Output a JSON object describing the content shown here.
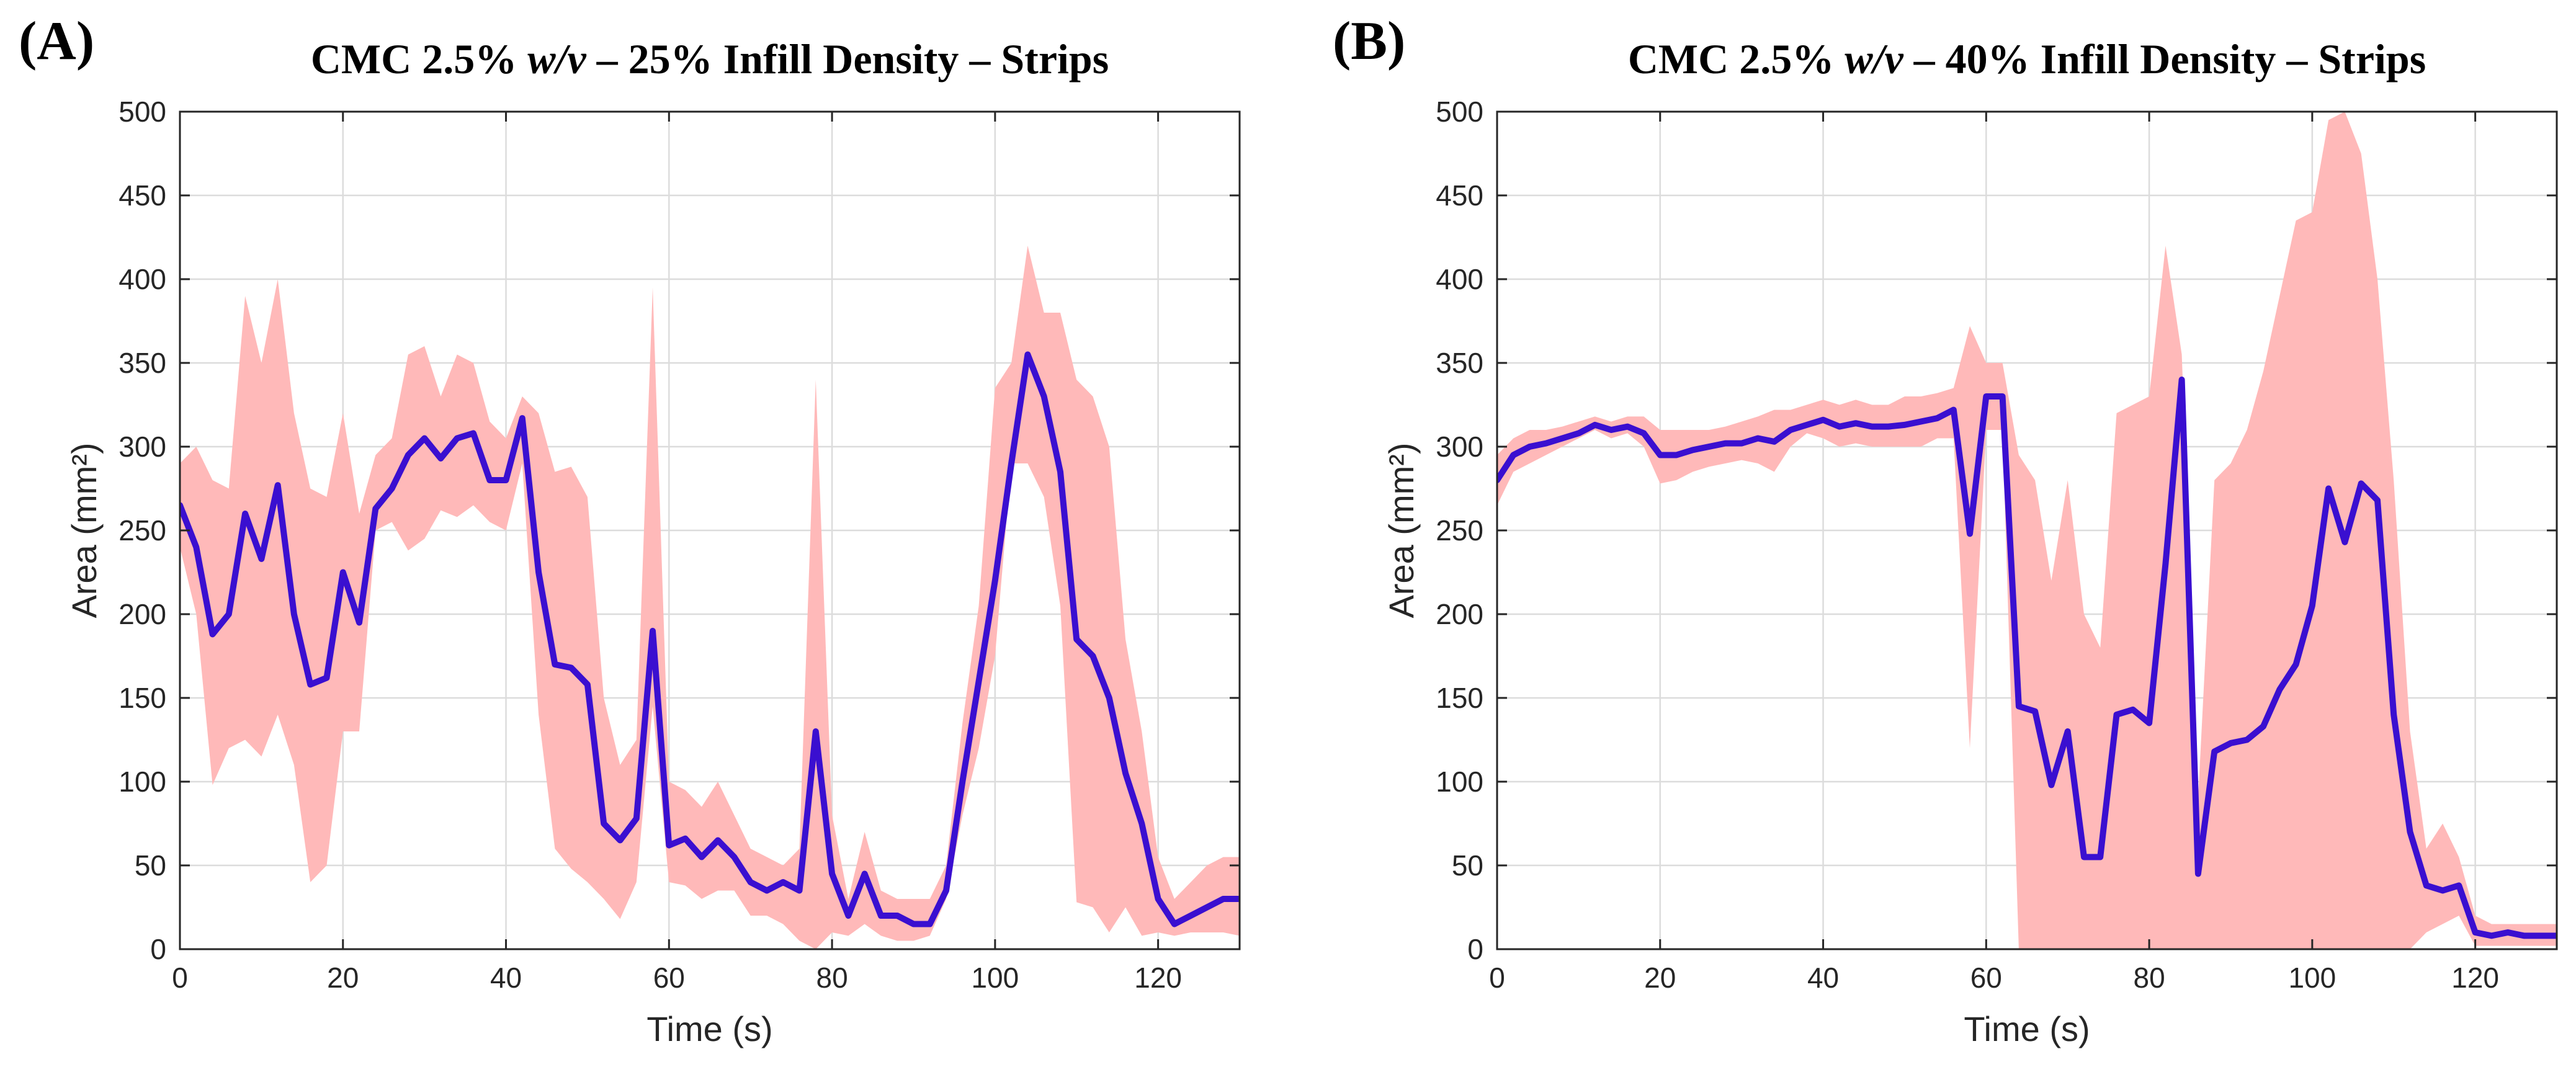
{
  "chart_data": [
    {
      "panel": "(A)",
      "type": "line",
      "title": "CMC 2.5% w/v – 25% Infill Density – Strips",
      "title_parts": [
        "CMC 2.5% ",
        "w/v",
        " – 25% Infill Density – Strips"
      ],
      "xlabel": "Time (s)",
      "ylabel": "Area (mm²)",
      "xlim": [
        0,
        130
      ],
      "ylim": [
        0,
        500
      ],
      "xticks": [
        0,
        20,
        40,
        60,
        80,
        100,
        120
      ],
      "yticks": [
        0,
        50,
        100,
        150,
        200,
        250,
        300,
        350,
        400,
        450,
        500
      ],
      "grid": true,
      "colors": {
        "mean": "#3a0fd0",
        "band": "#ffb9b9"
      },
      "series": [
        {
          "role": "mean",
          "x": [
            0,
            2,
            4,
            6,
            8,
            10,
            12,
            14,
            16,
            18,
            20,
            22,
            24,
            26,
            28,
            30,
            32,
            34,
            36,
            38,
            40,
            42,
            44,
            46,
            48,
            50,
            52,
            54,
            56,
            58,
            60,
            62,
            64,
            66,
            68,
            70,
            72,
            74,
            76,
            78,
            80,
            82,
            84,
            86,
            88,
            90,
            92,
            94,
            96,
            98,
            100,
            102,
            104,
            106,
            108,
            110,
            112,
            114,
            116,
            118,
            120,
            122,
            124,
            126,
            128,
            130
          ],
          "y": [
            265,
            240,
            188,
            200,
            260,
            233,
            277,
            200,
            158,
            162,
            225,
            195,
            263,
            275,
            295,
            305,
            293,
            305,
            308,
            280,
            280,
            317,
            225,
            170,
            168,
            158,
            75,
            65,
            78,
            190,
            62,
            66,
            55,
            65,
            55,
            40,
            35,
            40,
            35,
            130,
            45,
            20,
            45,
            20,
            20,
            15,
            15,
            35,
            100,
            160,
            220,
            290,
            355,
            330,
            285,
            185,
            175,
            150,
            105,
            75,
            30,
            15,
            20,
            25,
            30,
            30
          ],
          "lower": [
            240,
            200,
            98,
            120,
            125,
            115,
            140,
            110,
            40,
            50,
            130,
            130,
            250,
            255,
            238,
            245,
            262,
            258,
            265,
            255,
            250,
            290,
            140,
            60,
            48,
            40,
            30,
            18,
            40,
            145,
            40,
            38,
            30,
            35,
            35,
            20,
            20,
            15,
            5,
            0,
            10,
            8,
            15,
            8,
            5,
            5,
            8,
            30,
            80,
            120,
            175,
            290,
            290,
            270,
            205,
            28,
            25,
            10,
            25,
            8,
            10,
            8,
            10,
            10,
            10,
            8
          ],
          "upper": [
            290,
            300,
            280,
            275,
            390,
            350,
            400,
            320,
            275,
            270,
            320,
            260,
            295,
            305,
            355,
            360,
            330,
            355,
            350,
            315,
            305,
            330,
            320,
            285,
            288,
            270,
            150,
            110,
            125,
            395,
            100,
            95,
            85,
            100,
            80,
            60,
            55,
            50,
            60,
            340,
            80,
            30,
            70,
            35,
            30,
            30,
            30,
            50,
            135,
            205,
            335,
            350,
            420,
            380,
            380,
            340,
            330,
            300,
            185,
            130,
            55,
            30,
            40,
            50,
            55,
            55
          ]
        }
      ]
    },
    {
      "panel": "(B)",
      "type": "line",
      "title": "CMC 2.5% w/v – 40% Infill Density – Strips",
      "title_parts": [
        "CMC 2.5% ",
        "w/v",
        " – 40% Infill Density – Strips"
      ],
      "xlabel": "Time (s)",
      "ylabel": "Area (mm²)",
      "xlim": [
        0,
        130
      ],
      "ylim": [
        0,
        500
      ],
      "xticks": [
        0,
        20,
        40,
        60,
        80,
        100,
        120
      ],
      "yticks": [
        0,
        50,
        100,
        150,
        200,
        250,
        300,
        350,
        400,
        450,
        500
      ],
      "grid": true,
      "colors": {
        "mean": "#3a0fd0",
        "band": "#ffb9b9"
      },
      "series": [
        {
          "role": "mean",
          "x": [
            0,
            2,
            4,
            6,
            8,
            10,
            12,
            14,
            16,
            18,
            20,
            22,
            24,
            26,
            28,
            30,
            32,
            34,
            36,
            38,
            40,
            42,
            44,
            46,
            48,
            50,
            52,
            54,
            56,
            58,
            60,
            62,
            64,
            66,
            68,
            70,
            72,
            74,
            76,
            78,
            80,
            82,
            84,
            86,
            88,
            90,
            92,
            94,
            96,
            98,
            100,
            102,
            104,
            106,
            108,
            110,
            112,
            114,
            116,
            118,
            120,
            122,
            124,
            126,
            128,
            130
          ],
          "y": [
            280,
            295,
            300,
            302,
            305,
            308,
            313,
            310,
            312,
            308,
            295,
            295,
            298,
            300,
            302,
            302,
            305,
            303,
            310,
            313,
            316,
            312,
            314,
            312,
            312,
            313,
            315,
            317,
            322,
            248,
            330,
            330,
            145,
            142,
            98,
            130,
            55,
            55,
            140,
            143,
            135,
            230,
            340,
            45,
            118,
            123,
            125,
            133,
            155,
            170,
            205,
            275,
            243,
            278,
            268,
            140,
            70,
            38,
            35,
            38,
            10,
            8,
            10,
            8,
            8,
            8
          ],
          "lower": [
            265,
            285,
            290,
            295,
            300,
            305,
            310,
            305,
            308,
            300,
            278,
            280,
            285,
            288,
            290,
            292,
            290,
            285,
            300,
            308,
            305,
            300,
            302,
            300,
            300,
            300,
            300,
            305,
            305,
            120,
            310,
            310,
            0,
            0,
            0,
            0,
            0,
            0,
            0,
            0,
            0,
            0,
            0,
            0,
            0,
            0,
            0,
            0,
            0,
            0,
            0,
            0,
            0,
            0,
            0,
            0,
            0,
            10,
            15,
            20,
            2,
            2,
            2,
            2,
            2,
            2
          ],
          "upper": [
            295,
            305,
            310,
            310,
            312,
            315,
            318,
            315,
            318,
            318,
            310,
            310,
            310,
            310,
            312,
            315,
            318,
            322,
            322,
            325,
            328,
            325,
            328,
            325,
            325,
            330,
            330,
            332,
            335,
            372,
            350,
            350,
            295,
            280,
            220,
            280,
            200,
            180,
            320,
            325,
            330,
            420,
            355,
            90,
            280,
            290,
            310,
            345,
            390,
            435,
            440,
            495,
            500,
            475,
            400,
            280,
            130,
            60,
            75,
            55,
            20,
            15,
            15,
            15,
            15,
            15
          ]
        }
      ]
    }
  ]
}
